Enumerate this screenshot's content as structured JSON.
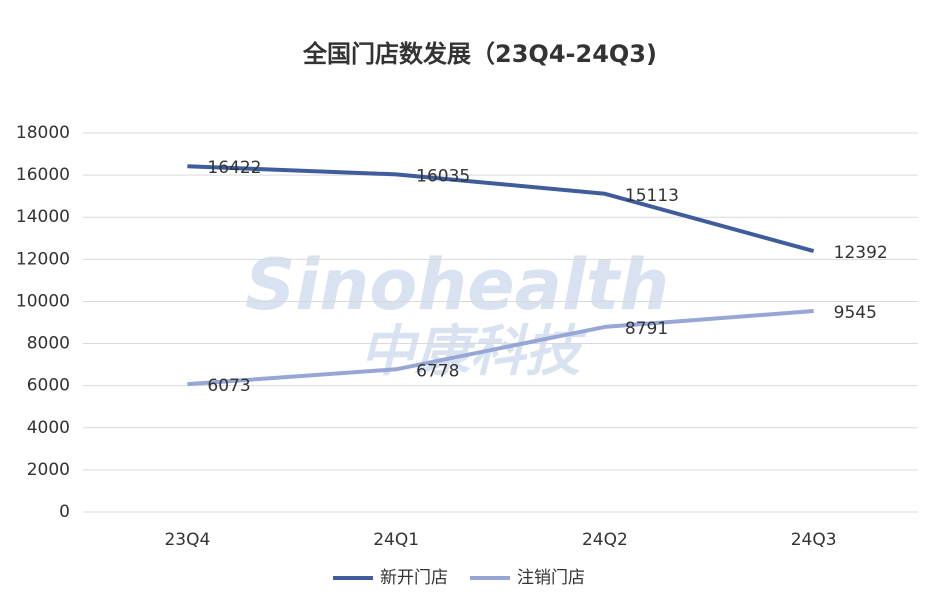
{
  "chart_data": {
    "type": "line",
    "title": "全国门店数发展（23Q4-24Q3)",
    "watermark": [
      "Sinohealth",
      "中康科技"
    ],
    "categories": [
      "23Q4",
      "24Q1",
      "24Q2",
      "24Q3"
    ],
    "series": [
      {
        "name": "新开门店",
        "color": "#3f5c9c",
        "values": [
          16422,
          16035,
          15113,
          12392
        ]
      },
      {
        "name": "注销门店",
        "color": "#97a7d5",
        "values": [
          6073,
          6778,
          8791,
          9545
        ]
      }
    ],
    "ylim": [
      0,
      18000
    ],
    "yticks": [
      0,
      2000,
      4000,
      6000,
      8000,
      10000,
      12000,
      14000,
      16000,
      18000
    ],
    "grid": true,
    "legend": "bottom"
  }
}
